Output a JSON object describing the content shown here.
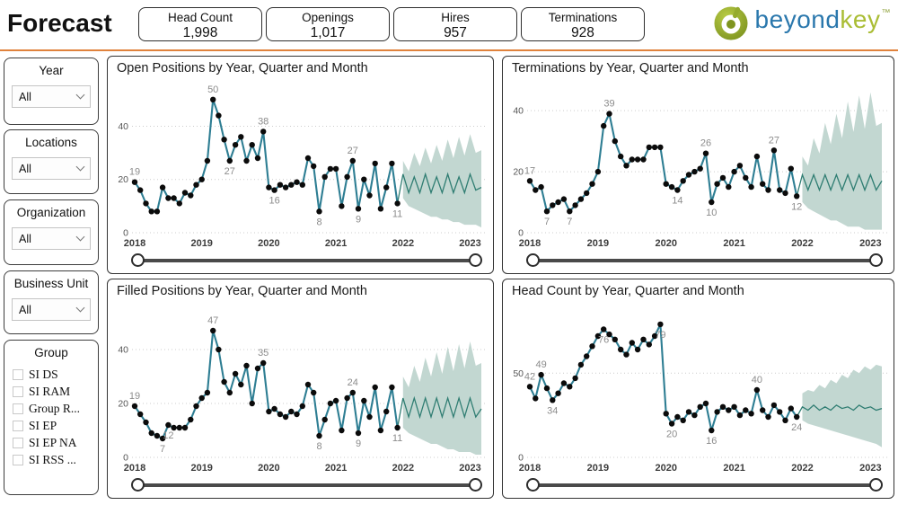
{
  "colors": {
    "divider": "#e0823c",
    "line": "#2e7e93",
    "forecast_line": "#2f7d72",
    "band": "#c2d7d1",
    "logo_blue": "#2b78ad",
    "logo_green": "#aabd35"
  },
  "header": {
    "title": "Forecast",
    "kpis": [
      {
        "label": "Head Count",
        "value": "1,998"
      },
      {
        "label": "Openings",
        "value": "1,017"
      },
      {
        "label": "Hires",
        "value": "957"
      },
      {
        "label": "Terminations",
        "value": "928"
      }
    ],
    "logo": {
      "beyond": "beyond",
      "key": "key",
      "tm": "™"
    }
  },
  "sidebar": {
    "filters": [
      {
        "label": "Year",
        "value": "All"
      },
      {
        "label": "Locations",
        "value": "All"
      },
      {
        "label": "Organization",
        "value": "All"
      },
      {
        "label": "Business Unit",
        "value": "All"
      }
    ],
    "group": {
      "label": "Group",
      "options": [
        "SI DS",
        "SI RAM",
        "Group R...",
        "SI EP",
        "SI EP NA",
        "SI RSS ..."
      ]
    }
  },
  "chart_data": [
    {
      "type": "line",
      "title": "Open Positions by Year, Quarter and Month",
      "x_ticks": [
        "2018",
        "2019",
        "2020",
        "2021",
        "2022",
        "2023"
      ],
      "y_ticks": [
        0,
        20,
        40
      ],
      "ymax": 55,
      "values": [
        19,
        16,
        11,
        8,
        8,
        17,
        13,
        13,
        11,
        15,
        14,
        18,
        20,
        27,
        50,
        44,
        35,
        27,
        33,
        36,
        27,
        33,
        28,
        38,
        17,
        16,
        18,
        17,
        18,
        19,
        18,
        28,
        25,
        8,
        21,
        24,
        24,
        10,
        21,
        27,
        9,
        20,
        14,
        26,
        9,
        17,
        26,
        11
      ],
      "labels": [
        {
          "i": 0,
          "text": "19",
          "pos": "above"
        },
        {
          "i": 14,
          "text": "50",
          "pos": "above"
        },
        {
          "i": 17,
          "text": "27",
          "pos": "below"
        },
        {
          "i": 23,
          "text": "38",
          "pos": "above"
        },
        {
          "i": 25,
          "text": "16",
          "pos": "below"
        },
        {
          "i": 33,
          "text": "8",
          "pos": "below"
        },
        {
          "i": 39,
          "text": "27",
          "pos": "above"
        },
        {
          "i": 40,
          "text": "9",
          "pos": "below"
        },
        {
          "i": 47,
          "text": "11",
          "pos": "below"
        }
      ],
      "forecast": {
        "mid": [
          22,
          15,
          21,
          15,
          22,
          15,
          21,
          15,
          22,
          15,
          21,
          15,
          22,
          16,
          17
        ],
        "upper": [
          27,
          23,
          30,
          25,
          32,
          26,
          33,
          27,
          35,
          28,
          36,
          29,
          37,
          30,
          31
        ],
        "lower": [
          13,
          10,
          9,
          8,
          7,
          6,
          6,
          5,
          5,
          4,
          4,
          3,
          3,
          3,
          2
        ]
      }
    },
    {
      "type": "line",
      "title": "Terminations by Year, Quarter and Month",
      "x_ticks": [
        "2018",
        "2019",
        "2020",
        "2021",
        "2022",
        "2023"
      ],
      "y_ticks": [
        0,
        20,
        40
      ],
      "ymax": 48,
      "values": [
        17,
        14,
        15,
        7,
        9,
        10,
        11,
        7,
        9,
        11,
        13,
        16,
        20,
        35,
        39,
        30,
        25,
        22,
        24,
        24,
        24,
        28,
        28,
        28,
        16,
        15,
        14,
        17,
        19,
        20,
        21,
        26,
        10,
        16,
        18,
        15,
        20,
        22,
        18,
        15,
        25,
        16,
        14,
        27,
        14,
        13,
        21,
        12
      ],
      "labels": [
        {
          "i": 0,
          "text": "17",
          "pos": "above"
        },
        {
          "i": 3,
          "text": "7",
          "pos": "below"
        },
        {
          "i": 7,
          "text": "7",
          "pos": "below"
        },
        {
          "i": 14,
          "text": "39",
          "pos": "above"
        },
        {
          "i": 26,
          "text": "14",
          "pos": "below"
        },
        {
          "i": 31,
          "text": "26",
          "pos": "above"
        },
        {
          "i": 32,
          "text": "10",
          "pos": "below"
        },
        {
          "i": 43,
          "text": "27",
          "pos": "above"
        },
        {
          "i": 47,
          "text": "12",
          "pos": "below"
        }
      ],
      "forecast": {
        "mid": [
          19,
          14,
          19,
          14,
          19,
          14,
          19,
          14,
          19,
          14,
          19,
          14,
          19,
          14,
          17
        ],
        "upper": [
          25,
          22,
          31,
          26,
          36,
          29,
          39,
          31,
          43,
          33,
          45,
          34,
          46,
          35,
          36
        ],
        "lower": [
          10,
          8,
          7,
          6,
          5,
          4,
          4,
          3,
          2,
          2,
          2,
          1,
          1,
          1,
          1
        ]
      }
    },
    {
      "type": "line",
      "title": "Filled Positions by Year, Quarter and Month",
      "x_ticks": [
        "2018",
        "2019",
        "2020",
        "2021",
        "2022",
        "2023"
      ],
      "y_ticks": [
        0,
        20,
        40
      ],
      "ymax": 55,
      "values": [
        19,
        16,
        13,
        9,
        8,
        7,
        12,
        11,
        11,
        11,
        14,
        19,
        22,
        24,
        47,
        40,
        28,
        24,
        31,
        27,
        34,
        20,
        33,
        35,
        17,
        18,
        16,
        15,
        17,
        16,
        19,
        27,
        24,
        8,
        14,
        20,
        21,
        10,
        22,
        24,
        9,
        21,
        15,
        26,
        10,
        17,
        26,
        11
      ],
      "labels": [
        {
          "i": 0,
          "text": "19",
          "pos": "above"
        },
        {
          "i": 5,
          "text": "7",
          "pos": "below"
        },
        {
          "i": 6,
          "text": "12",
          "pos": "below"
        },
        {
          "i": 14,
          "text": "47",
          "pos": "above"
        },
        {
          "i": 23,
          "text": "35",
          "pos": "above"
        },
        {
          "i": 33,
          "text": "8",
          "pos": "below"
        },
        {
          "i": 39,
          "text": "24",
          "pos": "above"
        },
        {
          "i": 40,
          "text": "9",
          "pos": "below"
        },
        {
          "i": 47,
          "text": "11",
          "pos": "below"
        }
      ],
      "forecast": {
        "mid": [
          22,
          15,
          22,
          15,
          22,
          15,
          22,
          15,
          22,
          15,
          22,
          15,
          22,
          15,
          18
        ],
        "upper": [
          30,
          26,
          34,
          28,
          37,
          30,
          39,
          31,
          41,
          32,
          42,
          33,
          43,
          34,
          35
        ],
        "lower": [
          11,
          9,
          8,
          7,
          6,
          5,
          5,
          4,
          3,
          3,
          2,
          2,
          2,
          1,
          1
        ]
      }
    },
    {
      "type": "line",
      "title": "Head Count by Year, Quarter and Month",
      "x_ticks": [
        "2018",
        "2019",
        "2020",
        "2021",
        "2022",
        "2023"
      ],
      "y_ticks": [
        0,
        50
      ],
      "ymax": 88,
      "values": [
        42,
        35,
        49,
        41,
        34,
        38,
        44,
        42,
        47,
        55,
        60,
        66,
        72,
        76,
        73,
        70,
        64,
        61,
        68,
        64,
        70,
        67,
        72,
        79,
        26,
        20,
        24,
        22,
        27,
        25,
        30,
        32,
        16,
        27,
        30,
        28,
        30,
        25,
        28,
        26,
        40,
        28,
        24,
        31,
        27,
        22,
        29,
        24
      ],
      "labels": [
        {
          "i": 0,
          "text": "42",
          "pos": "above"
        },
        {
          "i": 2,
          "text": "49",
          "pos": "above"
        },
        {
          "i": 4,
          "text": "34",
          "pos": "below"
        },
        {
          "i": 13,
          "text": "76",
          "pos": "below"
        },
        {
          "i": 23,
          "text": "79",
          "pos": "below"
        },
        {
          "i": 25,
          "text": "20",
          "pos": "below"
        },
        {
          "i": 32,
          "text": "16",
          "pos": "below"
        },
        {
          "i": 40,
          "text": "40",
          "pos": "above"
        },
        {
          "i": 47,
          "text": "24",
          "pos": "below"
        }
      ],
      "forecast": {
        "mid": [
          30,
          28,
          31,
          28,
          30,
          28,
          31,
          29,
          30,
          28,
          31,
          29,
          30,
          28,
          29
        ],
        "upper": [
          38,
          40,
          39,
          43,
          41,
          46,
          44,
          49,
          47,
          52,
          50,
          54,
          52,
          55,
          54
        ],
        "lower": [
          22,
          20,
          19,
          18,
          17,
          16,
          15,
          14,
          13,
          12,
          11,
          10,
          9,
          8,
          6
        ]
      }
    }
  ]
}
